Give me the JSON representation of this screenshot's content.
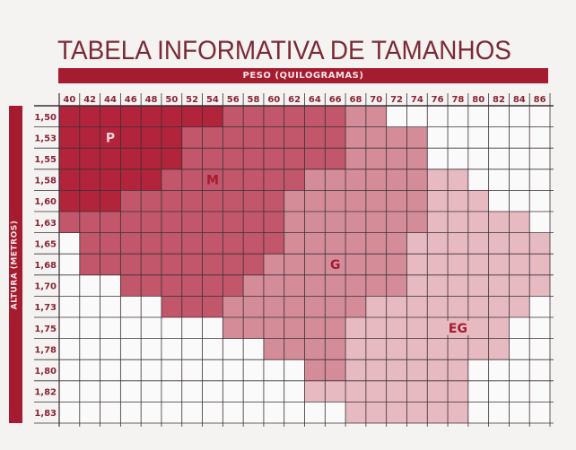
{
  "chart_data": {
    "type": "heatmap",
    "title": "TABELA INFORMATIVA DE TAMANHOS",
    "xlabel": "PESO (QUILOGRAMAS)",
    "ylabel": "ALTURA (METROS)",
    "x": [
      "40",
      "42",
      "44",
      "46",
      "48",
      "50",
      "52",
      "54",
      "56",
      "58",
      "60",
      "62",
      "64",
      "66",
      "68",
      "70",
      "72",
      "74",
      "76",
      "78",
      "80",
      "82",
      "84",
      "86"
    ],
    "y": [
      "1,50",
      "1,53",
      "1,55",
      "1,58",
      "1,60",
      "1,63",
      "1,65",
      "1,68",
      "1,70",
      "1,73",
      "1,75",
      "1,78",
      "1,80",
      "1,82",
      "1,83"
    ],
    "sizes": [
      {
        "code": "P",
        "label": "P",
        "color": "#b1243b",
        "label_color": "#f0d4d9",
        "at": [
          "44",
          "1,53"
        ]
      },
      {
        "code": "M",
        "label": "M",
        "color": "#c2566a",
        "label_color": "#a51c30",
        "at": [
          "54",
          "1,58"
        ]
      },
      {
        "code": "G",
        "label": "G",
        "color": "#d48c99",
        "label_color": "#a51c30",
        "at": [
          "66",
          "1,68"
        ]
      },
      {
        "code": "E",
        "label": "EG",
        "color": "#e7b9c1",
        "label_color": "#a51c30",
        "at": [
          "78",
          "1,75"
        ]
      }
    ],
    "empty_color": "#fbfafa",
    "grid_color": "#3a3035",
    "grid": [
      "PPPPPPPPMMMMMMGG00000000",
      "PPPPPPMMMMMMMMGGGG000000",
      "PPPPPPMMMMMMMMGGGG000000",
      "PPPPPMMMMMMMGGGGGGEE0000",
      "PPPMMMMMMMMGGGGGGGEEE000",
      "MMMMMMMMMMMGGGGGGGEEEEE0",
      "0MMMMMMMMMMGGGGGGEEEEEEE",
      "0MMMMMMMMMGGGGGGGEEEEEEE",
      "000MMMMMMGGGGGGGGEEEEEEE",
      "00000MMMGGGGGGGEEEEEEEE0",
      "00000000GGGGGGEEEEEEEE00",
      "0000000000GGGGEEEEEEEE00",
      "000000000000GGEEEEEE0000",
      "000000000000EEEEEEEE0000",
      "00000000000000EEEEEE0000"
    ]
  }
}
